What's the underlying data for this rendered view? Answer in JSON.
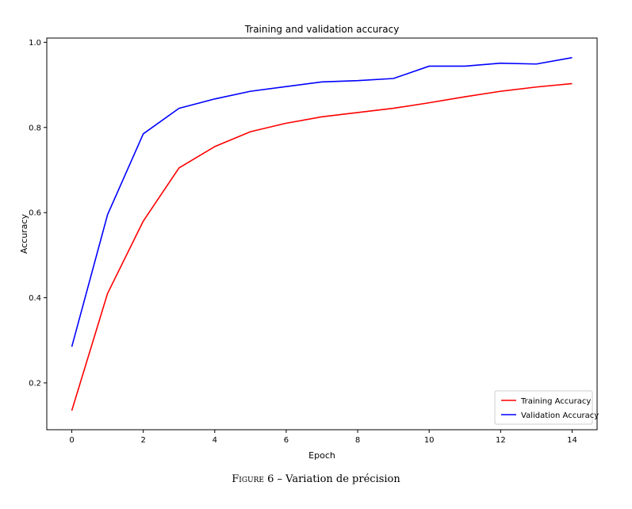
{
  "chart_data": {
    "type": "line",
    "title": "Training and validation accuracy",
    "xlabel": "Epoch",
    "ylabel": "Accuracy",
    "xlim": [
      -0.7,
      14.7
    ],
    "ylim": [
      0.09,
      1.01
    ],
    "xticks": [
      0,
      2,
      4,
      6,
      8,
      10,
      12,
      14
    ],
    "yticks": [
      0.2,
      0.4,
      0.6,
      0.8,
      1.0
    ],
    "ytick_labels": [
      "0.2",
      "0.4",
      "0.6",
      "0.8",
      "1.0"
    ],
    "x": [
      0,
      1,
      2,
      3,
      4,
      5,
      6,
      7,
      8,
      9,
      10,
      11,
      12,
      13,
      14
    ],
    "series": [
      {
        "name": "Training Accuracy",
        "color": "#ff0000",
        "values": [
          0.135,
          0.41,
          0.58,
          0.705,
          0.755,
          0.79,
          0.81,
          0.825,
          0.835,
          0.845,
          0.858,
          0.872,
          0.885,
          0.895,
          0.903
        ]
      },
      {
        "name": "Validation Accuracy",
        "color": "#0000ff",
        "values": [
          0.285,
          0.595,
          0.785,
          0.845,
          0.867,
          0.885,
          0.896,
          0.907,
          0.91,
          0.915,
          0.944,
          0.944,
          0.951,
          0.949,
          0.964
        ]
      }
    ],
    "grid": false,
    "legend_position": "lower-right"
  },
  "caption": {
    "label": "Figure 6",
    "separator": " – ",
    "text": "Variation de précision"
  }
}
